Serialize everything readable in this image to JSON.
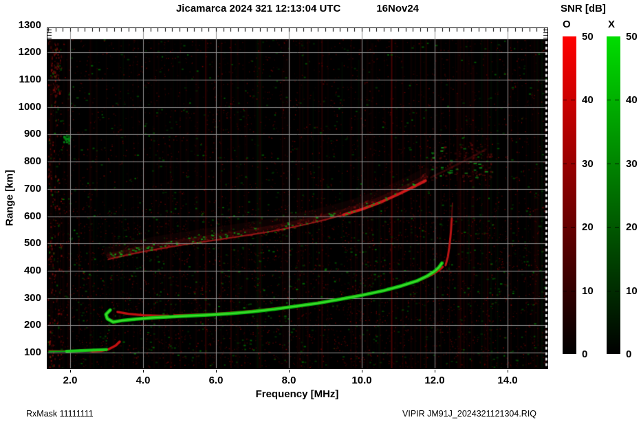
{
  "header": {
    "title": "Jicamarca 2024 321 12:13:04 UTC",
    "date": "16Nov24"
  },
  "footer": {
    "left": "RxMask 11111111",
    "right": "VIPIR  JM91J_2024321121304.RIQ"
  },
  "colorbar": {
    "title": "SNR [dB]",
    "o_label": "O",
    "x_label": "X",
    "o_color": "#ff0000",
    "x_color": "#00dd00",
    "tick_values": [
      50,
      40,
      30,
      20,
      10,
      0
    ],
    "range": [
      0,
      50
    ]
  },
  "chart_data": {
    "type": "heatmap",
    "title": "Jicamarca 2024 321 12:13:04 UTC 16Nov24",
    "xlabel": "Frequency [MHz]",
    "ylabel": "Range [km]",
    "xlim": [
      1.4,
      15.1
    ],
    "ylim": [
      40,
      1300
    ],
    "grid": true,
    "x_ticks": [
      2,
      4,
      6,
      8,
      10,
      12,
      14
    ],
    "x_tick_labels": [
      "2.0",
      "4.0",
      "6.0",
      "8.0",
      "10.0",
      "12.0",
      "14.0"
    ],
    "y_ticks": [
      100,
      200,
      300,
      400,
      500,
      600,
      700,
      800,
      900,
      1000,
      1100,
      1200,
      1300
    ],
    "legend": [
      {
        "label": "O",
        "color": "#ff0000"
      },
      {
        "label": "X",
        "color": "#00dd00"
      }
    ],
    "rfi_lines_mhz": [
      5.7,
      6.4,
      7.2,
      8.0,
      8.9,
      10.8,
      11.6,
      14.0
    ],
    "series": [
      {
        "name": "e-region-o",
        "mode": "O",
        "color": "#cc1010",
        "points": [
          [
            1.42,
            108
          ],
          [
            1.8,
            107
          ],
          [
            2.2,
            106
          ],
          [
            2.6,
            105
          ],
          [
            2.85,
            106
          ],
          [
            3.05,
            112
          ],
          [
            3.25,
            126
          ],
          [
            3.36,
            140
          ]
        ]
      },
      {
        "name": "e-region-x",
        "mode": "X",
        "color": "#00cc00",
        "points": [
          [
            1.42,
            104
          ],
          [
            1.9,
            105
          ],
          [
            2.3,
            107
          ],
          [
            2.75,
            110
          ],
          [
            3.0,
            111
          ]
        ]
      },
      {
        "name": "f-region-x",
        "mode": "X",
        "color": "#00cc00",
        "points": [
          [
            3.1,
            256
          ],
          [
            2.98,
            240
          ],
          [
            3.02,
            224
          ],
          [
            3.18,
            212
          ],
          [
            3.45,
            218
          ],
          [
            3.8,
            223
          ],
          [
            4.3,
            228
          ],
          [
            5.0,
            233
          ],
          [
            5.7,
            237
          ],
          [
            6.4,
            243
          ],
          [
            7.0,
            250
          ],
          [
            7.6,
            259
          ],
          [
            8.2,
            270
          ],
          [
            8.8,
            281
          ],
          [
            9.4,
            295
          ],
          [
            10.0,
            310
          ],
          [
            10.6,
            327
          ],
          [
            11.1,
            345
          ],
          [
            11.5,
            362
          ],
          [
            11.8,
            381
          ],
          [
            12.0,
            398
          ],
          [
            12.12,
            413
          ],
          [
            12.2,
            428
          ]
        ]
      },
      {
        "name": "f-region-o-a",
        "mode": "O",
        "color": "#cc1010",
        "points": [
          [
            3.3,
            249
          ],
          [
            3.6,
            242
          ],
          [
            4.0,
            237
          ],
          [
            4.45,
            235
          ],
          [
            4.7,
            235
          ]
        ]
      },
      {
        "name": "f-region-o-b",
        "mode": "O",
        "color": "#cc1010",
        "points": [
          [
            4.85,
            236
          ],
          [
            5.3,
            238
          ],
          [
            5.9,
            241
          ],
          [
            6.5,
            247
          ],
          [
            7.1,
            254
          ],
          [
            7.7,
            263
          ],
          [
            8.3,
            273
          ],
          [
            8.9,
            285
          ],
          [
            9.5,
            299
          ],
          [
            10.1,
            314
          ],
          [
            10.7,
            331
          ],
          [
            11.2,
            349
          ],
          [
            11.6,
            366
          ],
          [
            11.9,
            384
          ],
          [
            12.1,
            400
          ],
          [
            12.22,
            414
          ]
        ]
      },
      {
        "name": "f-cusp-o",
        "mode": "O",
        "color": "#cc1010",
        "points": [
          [
            12.3,
            420
          ],
          [
            12.36,
            450
          ],
          [
            12.4,
            485
          ],
          [
            12.43,
            520
          ],
          [
            12.45,
            550
          ],
          [
            12.46,
            575
          ],
          [
            12.47,
            592
          ]
        ]
      },
      {
        "name": "f-cusp-faint",
        "mode": "O",
        "color": "#991010",
        "points": [
          [
            12.47,
            600
          ],
          [
            12.48,
            625
          ],
          [
            12.49,
            648
          ]
        ]
      },
      {
        "name": "spread-f-band-edge",
        "mode": "O",
        "color": "#aa1414",
        "points": [
          [
            3.05,
            442
          ],
          [
            3.5,
            456
          ],
          [
            4.0,
            470
          ],
          [
            4.5,
            482
          ],
          [
            5.0,
            493
          ],
          [
            5.5,
            503
          ],
          [
            6.0,
            513
          ],
          [
            6.5,
            523
          ],
          [
            7.0,
            533
          ],
          [
            7.5,
            544
          ],
          [
            8.0,
            557
          ],
          [
            8.5,
            571
          ],
          [
            9.0,
            587
          ],
          [
            9.5,
            605
          ],
          [
            10.0,
            625
          ],
          [
            10.5,
            650
          ],
          [
            11.0,
            680
          ],
          [
            11.4,
            706
          ],
          [
            11.75,
            730
          ]
        ]
      },
      {
        "name": "spread-f-band-ext",
        "mode": "O",
        "color": "#771010",
        "points": [
          [
            11.9,
            742
          ],
          [
            12.3,
            768
          ],
          [
            12.7,
            795
          ],
          [
            13.1,
            822
          ],
          [
            13.4,
            845
          ]
        ]
      }
    ]
  }
}
